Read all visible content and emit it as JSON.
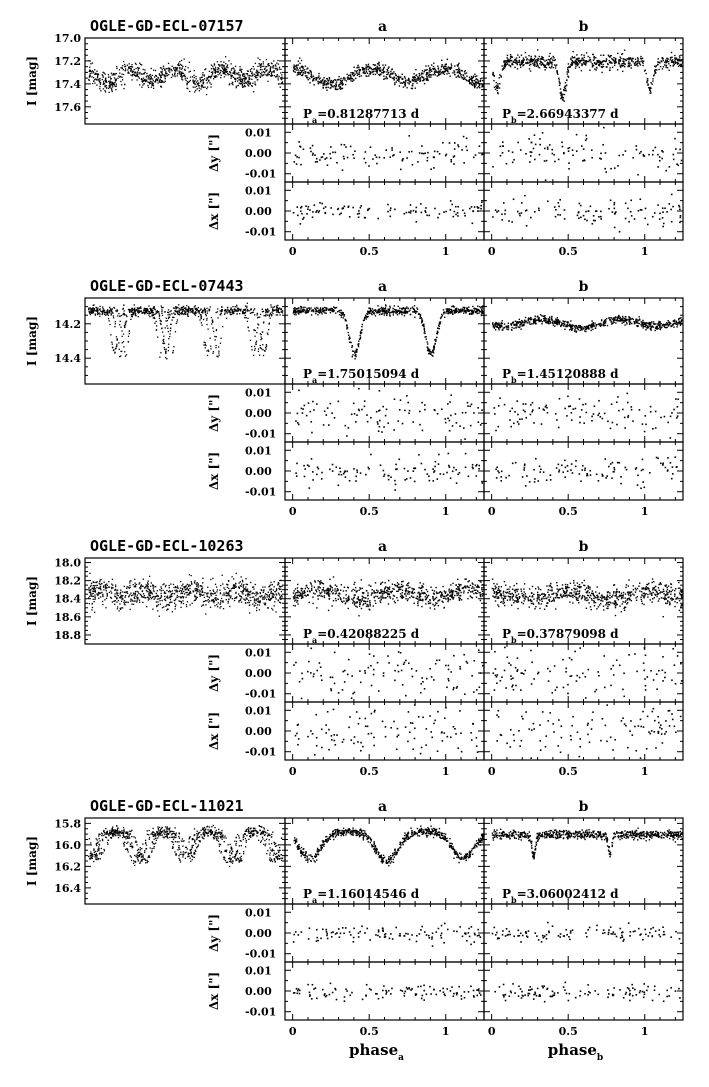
{
  "chart_data": [
    {
      "type": "scatter",
      "title": "OGLE-GD-ECL-07157",
      "panel_labels": [
        "a",
        "b"
      ],
      "ylabel_mag": "I [mag]",
      "mag_ticks": [
        "17.0",
        "17.2",
        "17.4",
        "17.6"
      ],
      "mag_range": [
        17.0,
        17.75
      ],
      "ylabel_dy": "Δy [\"]",
      "ylabel_dx": "Δx [\"]",
      "offset_ticks": [
        "0.01",
        "0.00",
        "-0.01"
      ],
      "offset_range": [
        -0.014,
        0.014
      ],
      "periods": {
        "a": "Pa=0.81287713 d",
        "b": "Pb=2.66943377 d"
      },
      "periods_value_days": {
        "a": 0.81287713,
        "b": 2.66943377
      },
      "x_range": [
        -0.05,
        1.25
      ],
      "model": {
        "a": {
          "base": 17.2,
          "eclipses": [
            {
              "phase": 0.25,
              "depth": 0.2,
              "width": 0.13
            },
            {
              "phase": 0.75,
              "depth": 0.17,
              "width": 0.13
            }
          ]
        },
        "b": {
          "base": 17.2,
          "eclipses": [
            {
              "phase": 0.46,
              "depth": 0.32,
              "width": 0.022
            },
            {
              "phase": 1.03,
              "depth": 0.24,
              "width": 0.022
            }
          ]
        }
      },
      "scatter_mag": 0.03,
      "offset_spread": {
        "a_dy": 0.004,
        "a_dx": 0.003,
        "b_dy": 0.006,
        "b_dx": 0.004
      }
    },
    {
      "type": "scatter",
      "title": "OGLE-GD-ECL-07443",
      "panel_labels": [
        "a",
        "b"
      ],
      "ylabel_mag": "I [mag]",
      "mag_ticks": [
        "14.2",
        "14.4"
      ],
      "mag_range": [
        14.05,
        14.55
      ],
      "ylabel_dy": "Δy [\"]",
      "ylabel_dx": "Δx [\"]",
      "offset_ticks": [
        "0.01",
        "0.00",
        "-0.01"
      ],
      "offset_range": [
        -0.014,
        0.014
      ],
      "periods": {
        "a": "Pa=1.75015094 d",
        "b": "Pb=1.45120888 d"
      },
      "periods_value_days": {
        "a": 1.75015094,
        "b": 1.45120888
      },
      "x_range": [
        -0.05,
        1.25
      ],
      "model": {
        "a": {
          "base": 14.12,
          "eclipses": [
            {
              "phase": 0.4,
              "depth": 0.25,
              "width": 0.035
            },
            {
              "phase": 0.9,
              "depth": 0.25,
              "width": 0.035
            }
          ]
        },
        "b": {
          "base": 14.16,
          "eclipses": [
            {
              "phase": 0.58,
              "depth": 0.06,
              "width": 0.12
            },
            {
              "phase": 1.08,
              "depth": 0.05,
              "width": 0.12
            }
          ]
        }
      },
      "scatter_mag": 0.012,
      "offset_spread": {
        "a_dy": 0.006,
        "a_dx": 0.004,
        "b_dy": 0.005,
        "b_dx": 0.004
      }
    },
    {
      "type": "scatter",
      "title": "OGLE-GD-ECL-10263",
      "panel_labels": [
        "a",
        "b"
      ],
      "ylabel_mag": "I [mag]",
      "mag_ticks": [
        "18.0",
        "18.2",
        "18.4",
        "18.6",
        "18.8"
      ],
      "mag_range": [
        17.95,
        18.9
      ],
      "ylabel_dy": "Δy [\"]",
      "ylabel_dx": "Δx [\"]",
      "offset_ticks": [
        "0.01",
        "0.00",
        "-0.01"
      ],
      "offset_range": [
        -0.014,
        0.014
      ],
      "periods": {
        "a": "Pa=0.42088225 d",
        "b": "Pb=0.37879098 d"
      },
      "periods_value_days": {
        "a": 0.42088225,
        "b": 0.37879098
      },
      "x_range": [
        -0.05,
        1.25
      ],
      "model": {
        "a": {
          "base": 18.25,
          "eclipses": [
            {
              "phase": 0.42,
              "depth": 0.14,
              "width": 0.13
            },
            {
              "phase": 0.92,
              "depth": 0.14,
              "width": 0.13
            }
          ]
        },
        "b": {
          "base": 18.27,
          "eclipses": [
            {
              "phase": 0.27,
              "depth": 0.12,
              "width": 0.13
            },
            {
              "phase": 0.77,
              "depth": 0.14,
              "width": 0.13
            }
          ]
        }
      },
      "scatter_mag": 0.06,
      "offset_spread": {
        "a_dy": 0.008,
        "a_dx": 0.007,
        "b_dy": 0.008,
        "b_dx": 0.007
      }
    },
    {
      "type": "scatter",
      "title": "OGLE-GD-ECL-11021",
      "panel_labels": [
        "a",
        "b"
      ],
      "ylabel_mag": "I [mag]",
      "mag_ticks": [
        "15.8",
        "16.0",
        "16.2",
        "16.4"
      ],
      "mag_range": [
        15.75,
        16.55
      ],
      "ylabel_dy": "Δy [\"]",
      "ylabel_dx": "Δx [\"]",
      "offset_ticks": [
        "0.01",
        "0.00",
        "-0.01"
      ],
      "offset_range": [
        -0.014,
        0.014
      ],
      "periods": {
        "a": "Pa=1.16014546 d",
        "b": "Pb=3.06002412 d"
      },
      "periods_value_days": {
        "a": 1.16014546,
        "b": 3.06002412
      },
      "x_range": [
        -0.05,
        1.25
      ],
      "model": {
        "a": {
          "base": 15.87,
          "eclipses": [
            {
              "phase": 0.61,
              "depth": 0.28,
              "width": 0.07
            },
            {
              "phase": 1.11,
              "depth": 0.25,
              "width": 0.07
            }
          ]
        },
        "b": {
          "base": 15.9,
          "eclipses": [
            {
              "phase": 0.27,
              "depth": 0.2,
              "width": 0.012
            },
            {
              "phase": 0.77,
              "depth": 0.18,
              "width": 0.012
            }
          ]
        }
      },
      "scatter_mag": 0.02,
      "offset_spread": {
        "a_dy": 0.0025,
        "a_dx": 0.0025,
        "b_dy": 0.0025,
        "b_dx": 0.0025
      }
    }
  ],
  "x_axis": {
    "ticks": [
      0,
      0.5,
      1
    ],
    "tick_labels": [
      "0",
      "0.5",
      "1"
    ],
    "xlabel_a": "phase",
    "xlabel_a_sub": "a",
    "xlabel_b": "phase",
    "xlabel_b_sub": "b"
  }
}
